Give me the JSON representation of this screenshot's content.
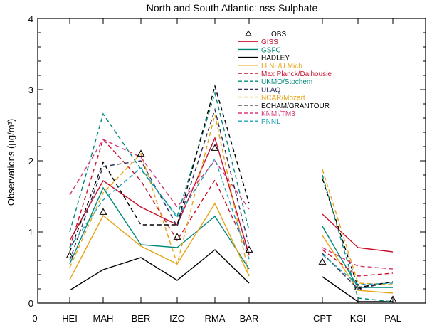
{
  "chart_data": {
    "type": "line",
    "title": "North and South Atlantic: nss-Sulphate",
    "ylabel": "Observations (μg/m³)",
    "xlabel": "",
    "ylim": [
      0,
      4
    ],
    "yticks": [
      "0",
      "1",
      "2",
      "3",
      "4"
    ],
    "x_origin_label": "0",
    "grid": false,
    "legend_position": "top-right",
    "categories": [
      "HEI",
      "MAH",
      "BER",
      "IZO",
      "RMA",
      "BAR",
      "CPT",
      "KGI",
      "PAL"
    ],
    "groups": [
      [
        0,
        1,
        2,
        3,
        4,
        5
      ],
      [
        6,
        7,
        8
      ]
    ],
    "observations": {
      "name": "OBS",
      "marker": "triangle",
      "values": [
        0.67,
        1.28,
        2.1,
        0.93,
        2.18,
        0.75,
        0.58,
        0.22,
        0.05
      ]
    },
    "series": [
      {
        "name": "GISS",
        "color": "#c8102e",
        "dash": false,
        "values": [
          0.88,
          1.72,
          1.35,
          1.1,
          2.32,
          0.68,
          1.25,
          0.78,
          0.72
        ]
      },
      {
        "name": "GSFC",
        "color": "#00897b",
        "dash": false,
        "values": [
          0.55,
          1.62,
          0.82,
          0.78,
          1.22,
          0.48,
          1.08,
          0.22,
          0.22
        ]
      },
      {
        "name": "HADLEY",
        "color": "#000000",
        "dash": false,
        "values": [
          0.18,
          0.47,
          0.64,
          0.32,
          0.75,
          0.28,
          0.37,
          0.02,
          0.02
        ]
      },
      {
        "name": "LLNL/U.Mich",
        "color": "#e8a317",
        "dash": false,
        "values": [
          0.33,
          1.23,
          0.8,
          0.55,
          1.4,
          0.38,
          0.95,
          0.18,
          0.14
        ]
      },
      {
        "name": "Max Planck/Dalhousie",
        "color": "#c8102e",
        "dash": true,
        "values": [
          0.78,
          2.3,
          1.72,
          0.88,
          1.73,
          0.7,
          0.75,
          0.38,
          0.42
        ]
      },
      {
        "name": "UKMO/Stochem",
        "color": "#00897b",
        "dash": true,
        "values": [
          1.0,
          2.66,
          1.88,
          1.22,
          2.95,
          1.02,
          1.8,
          0.07,
          0.02
        ]
      },
      {
        "name": "ULAQ",
        "color": "#2f2f5f",
        "dash": true,
        "values": [
          0.6,
          1.92,
          2.0,
          1.08,
          2.72,
          0.8,
          0.7,
          0.2,
          0.3
        ]
      },
      {
        "name": "NCAR/Mozart",
        "color": "#e8a317",
        "dash": true,
        "values": [
          0.5,
          1.55,
          2.1,
          0.55,
          2.65,
          0.38,
          1.88,
          0.28,
          0.26
        ]
      },
      {
        "name": "ECHAM/GRANTOUR",
        "color": "#000000",
        "dash": true,
        "values": [
          0.72,
          1.98,
          1.1,
          1.1,
          3.05,
          1.4,
          1.75,
          0.22,
          0.3
        ]
      },
      {
        "name": "KNMI/TM3",
        "color": "#d6387a",
        "dash": true,
        "values": [
          1.52,
          2.3,
          2.05,
          1.35,
          2.0,
          1.32,
          0.78,
          0.52,
          0.48
        ]
      },
      {
        "name": "PNNL",
        "color": "#1ea0b8",
        "dash": true,
        "values": [
          0.78,
          1.45,
          1.9,
          1.2,
          2.03,
          0.62,
          0.68,
          0.26,
          0.28
        ]
      }
    ]
  }
}
